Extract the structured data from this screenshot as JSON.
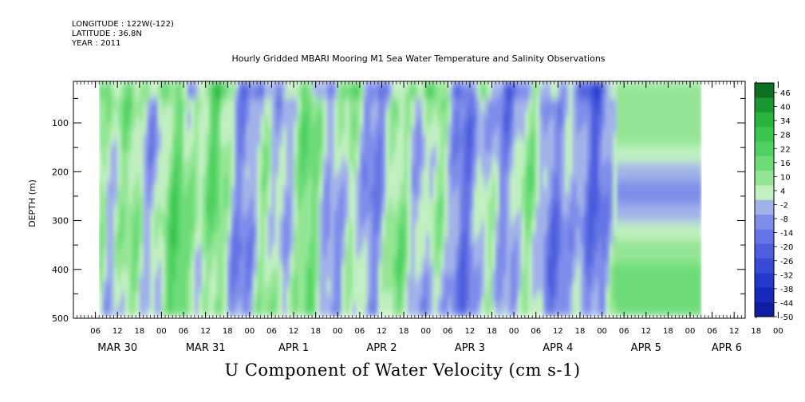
{
  "header": {
    "longitude": "LONGITUDE : 122W(-122)",
    "latitude": "LATITUDE : 36.8N",
    "year": "YEAR : 2011"
  },
  "chart_data": {
    "type": "heatmap",
    "title": "Hourly Gridded MBARI Mooring M1 Sea Water Temperature and Salinity Observations",
    "variable_label": "U Component of Water Velocity (cm s-1)",
    "ylabel": "DEPTH (m)",
    "yticks": [
      100,
      200,
      300,
      400,
      500
    ],
    "ylim": [
      15,
      500
    ],
    "y_inverted": true,
    "x_hour_ticks": [
      "06",
      "12",
      "18",
      "00",
      "06",
      "12",
      "18",
      "00",
      "06",
      "12",
      "18",
      "00",
      "06",
      "12",
      "18",
      "00",
      "06",
      "12",
      "18",
      "00",
      "06",
      "12",
      "18",
      "00",
      "06",
      "12",
      "18",
      "00",
      "06",
      "12",
      "18",
      "00"
    ],
    "x_day_labels": [
      {
        "label": "MAR 30",
        "hour": 12
      },
      {
        "label": "MAR 31",
        "hour": 36
      },
      {
        "label": "APR  1",
        "hour": 60
      },
      {
        "label": "APR  2",
        "hour": 84
      },
      {
        "label": "APR  3",
        "hour": 108
      },
      {
        "label": "APR  4",
        "hour": 132
      },
      {
        "label": "APR  5",
        "hour": 156
      },
      {
        "label": "APR  6",
        "hour": 178
      }
    ],
    "xlim_hours": [
      0,
      183
    ],
    "data_start_hour": 7,
    "data_end_hour": 171,
    "colorbar": {
      "levels": [
        -50,
        -44,
        -38,
        -32,
        -26,
        -20,
        -14,
        -8,
        -2,
        4,
        10,
        16,
        22,
        28,
        34,
        40,
        46
      ],
      "labels": [
        "46",
        "40",
        "34",
        "28",
        "22",
        "16",
        "10",
        "4",
        "-2",
        "-8",
        "-14",
        "-20",
        "-26",
        "-32",
        "-38",
        "-44",
        "-50"
      ]
    },
    "colors": {
      "neg_strong": "#1a2ec8",
      "neg_mid": "#6f7fe6",
      "neg_weak": "#aab4f2",
      "zero": "#c8f0c8",
      "pos_weak": "#8ee08e",
      "pos_mid": "#3fcf55",
      "pos_strong": "#0f6a1e"
    }
  }
}
